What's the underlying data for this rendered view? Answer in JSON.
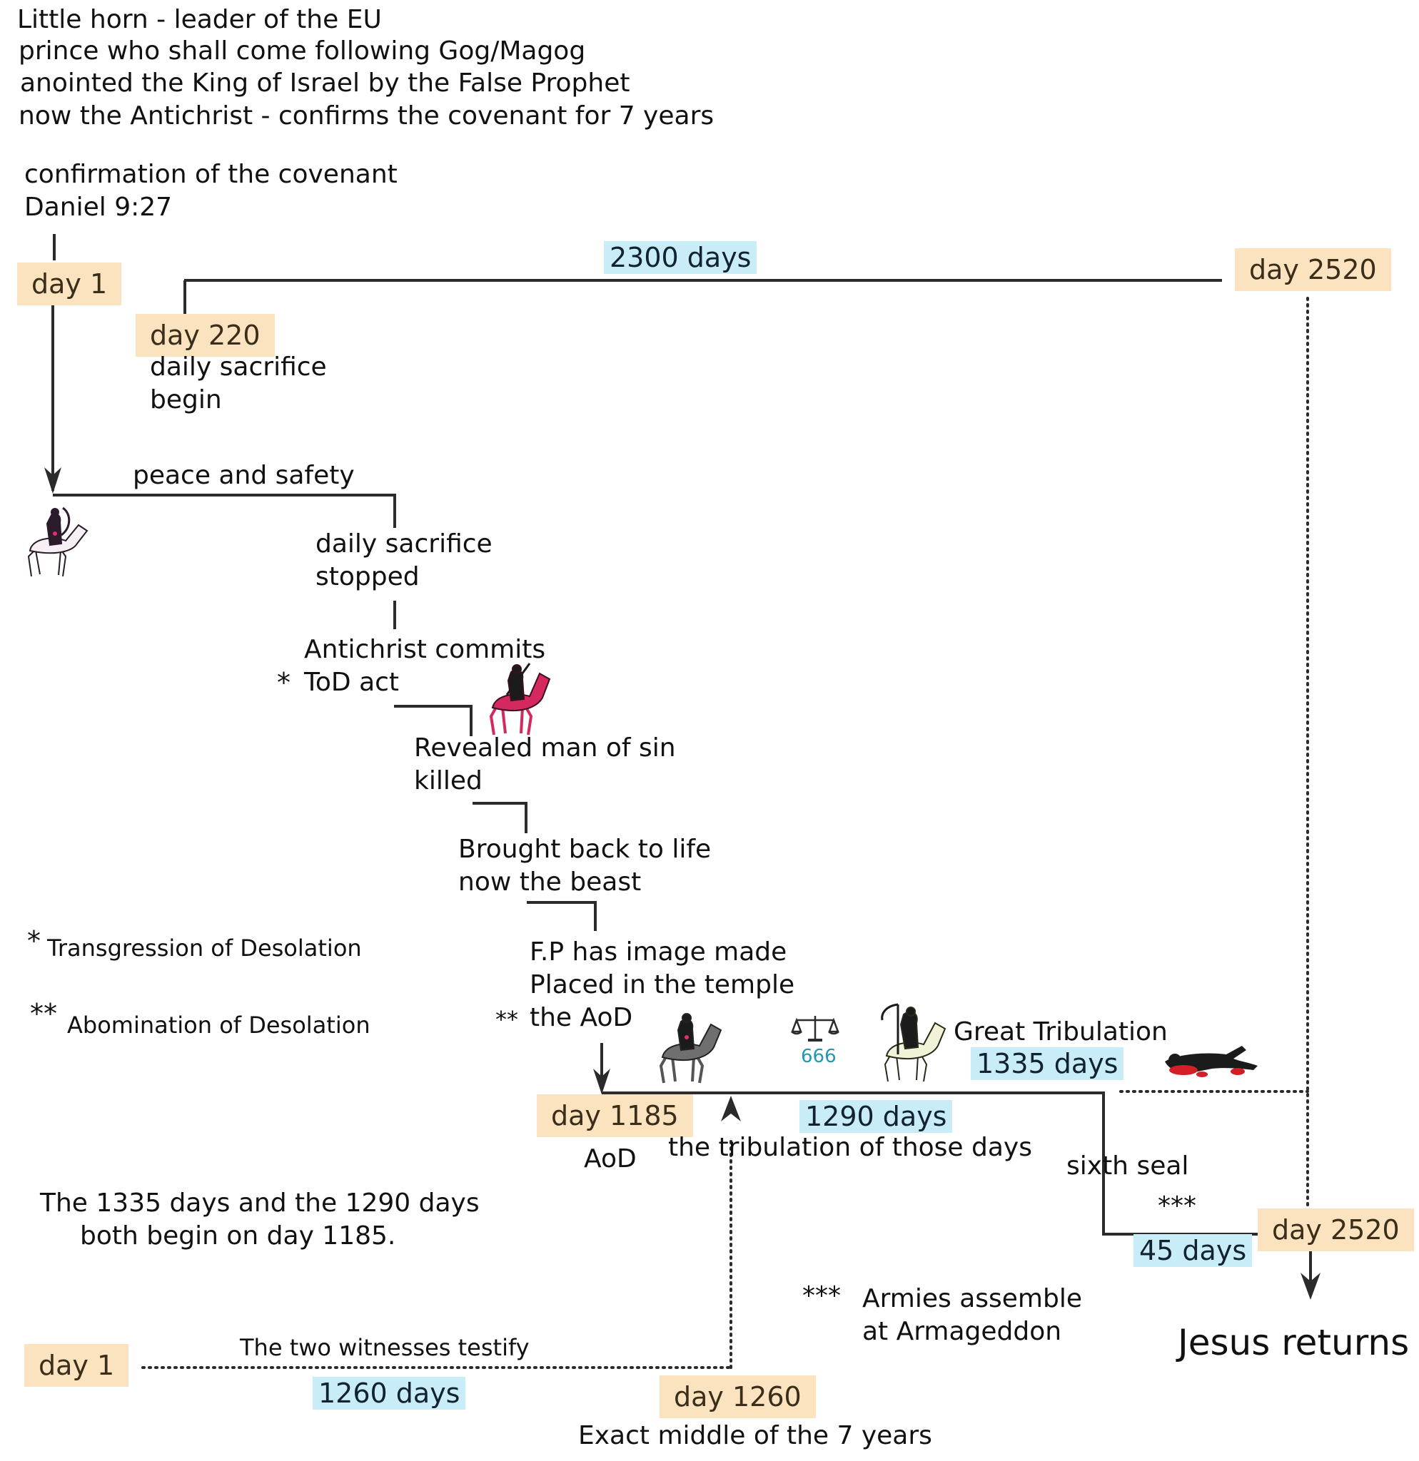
{
  "header": {
    "line1": "Little horn - leader of the EU",
    "line2": "prince who shall come following Gog/Magog",
    "line3": "anointed the King of Israel by the False Prophet",
    "line4": "now the Antichrist - confirms the covenant for 7 years"
  },
  "confirmation": {
    "line1": "confirmation of the covenant",
    "line2": "Daniel 9:27"
  },
  "days": {
    "day1_top": "day 1",
    "day220": "day 220",
    "day2520_top": "day 2520",
    "day1185": "day 1185",
    "day2520_bottom": "day 2520",
    "day1_bottom": "day 1",
    "day1260": "day 1260"
  },
  "durations": {
    "d2300": "2300 days",
    "d1335": "1335 days",
    "d1290": "1290 days",
    "d45": "45 days",
    "d1260": "1260 days"
  },
  "events": {
    "daily_begin_1": "daily sacrifice",
    "daily_begin_2": "begin",
    "peace": "peace and safety",
    "daily_stop_1": "daily sacrifice",
    "daily_stop_2": "stopped",
    "commits_1": "Antichrist commits",
    "commits_star": "*",
    "commits_2": "ToD act",
    "revealed_1": "Revealed man of sin",
    "revealed_2": "killed",
    "brought_1": "Brought back to life",
    "brought_2": "now the beast",
    "fp_1": "F.P has image made",
    "fp_2": "Placed in the temple",
    "fp_star": "**",
    "fp_3": "the AoD",
    "aod": "AoD",
    "great_trib": "Great Tribulation",
    "trib_days": "the tribulation of those days",
    "sixth_seal": "sixth seal",
    "three_star": "***",
    "mark": "666",
    "witnesses": "The two witnesses testify",
    "exact_middle": "Exact middle of the 7 years",
    "jesus": "Jesus returns"
  },
  "notes": {
    "tod_star": "*",
    "tod": "Transgression of Desolation",
    "aod_star": "**",
    "aod": "Abomination of Desolation",
    "both_1": "The 1335 days and the 1290 days",
    "both_2": "both begin on day 1185.",
    "armies_star": "***",
    "armies_1": "Armies assemble",
    "armies_2": "at Armageddon"
  },
  "colors": {
    "day_box": "#fbe3bf",
    "duration_box": "#c8ecf8",
    "line": "#2b2b2b",
    "mark_text": "#2396b4"
  },
  "icons": {
    "white_horse": "white-horse-rider-icon",
    "red_horse": "red-horse-rider-icon",
    "black_horse": "black-horse-rider-icon",
    "scales": "scales-icon",
    "pale_horse": "pale-horse-rider-icon",
    "slain_figure": "slain-figure-icon"
  }
}
